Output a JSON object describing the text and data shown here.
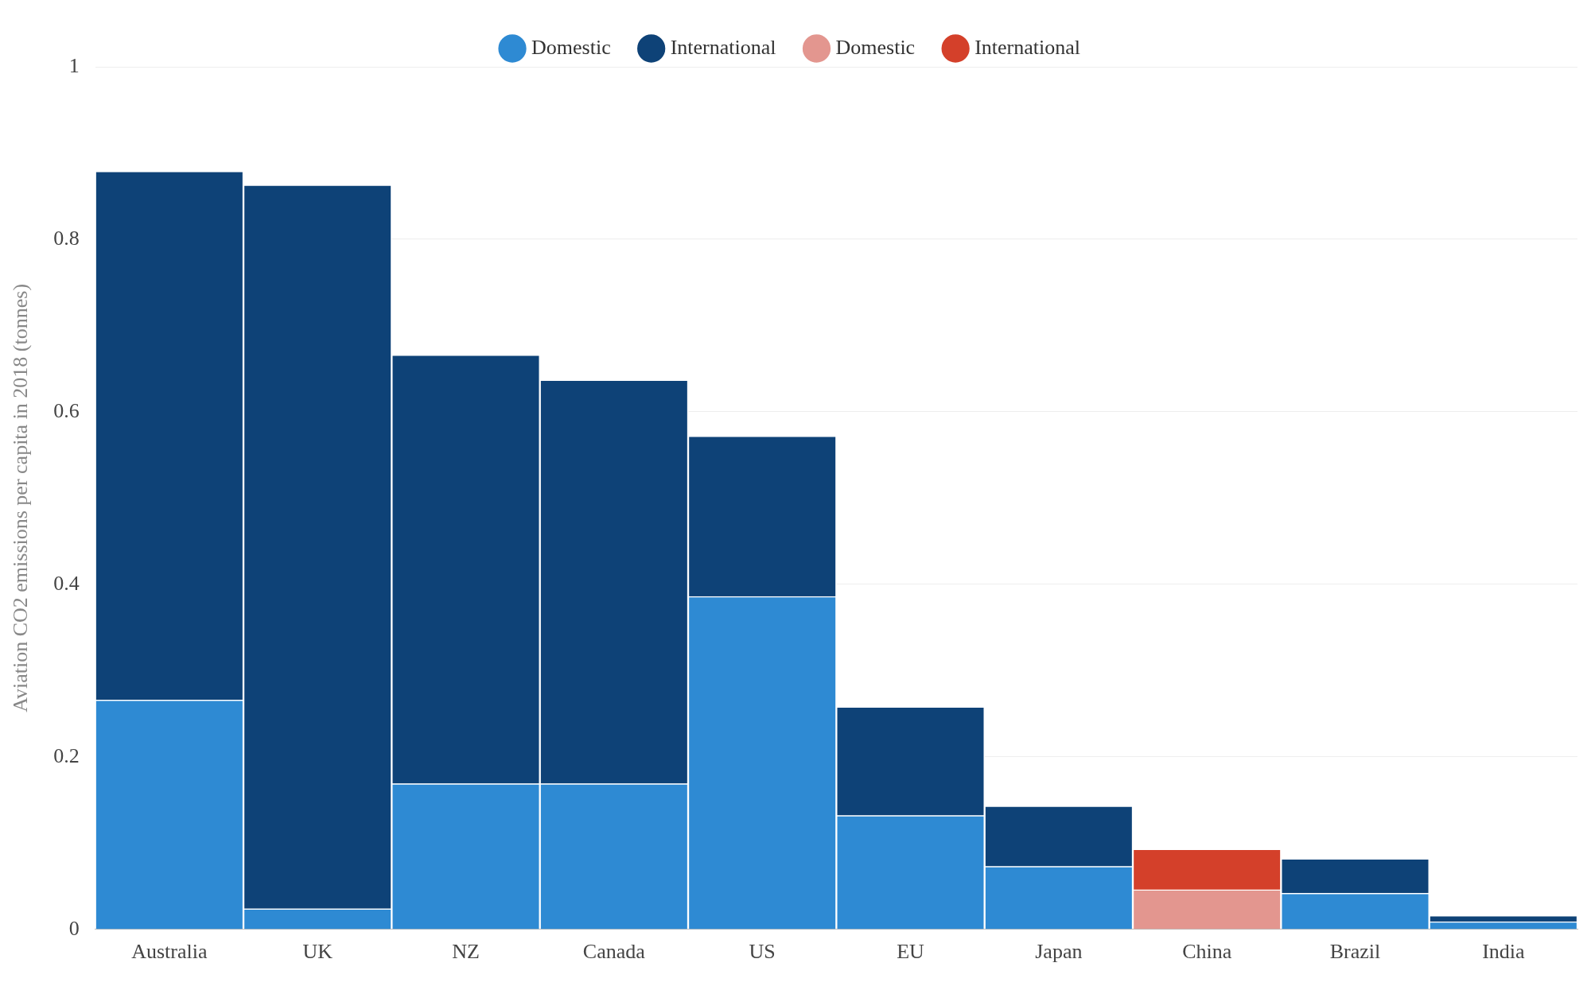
{
  "chart_data": {
    "type": "bar",
    "stacked": true,
    "ylabel": "Aviation CO2 emissions per capita in 2018 (tonnes)",
    "categories": [
      "Australia",
      "UK",
      "NZ",
      "Canada",
      "US",
      "EU",
      "Japan",
      "China",
      "Brazil",
      "India"
    ],
    "series": [
      {
        "name": "Domestic",
        "color": "#2e8ad3",
        "values": [
          0.266,
          0.024,
          0.169,
          0.169,
          0.386,
          0.132,
          0.073,
          null,
          0.042,
          0.009
        ]
      },
      {
        "name": "International",
        "color": "#0e4277",
        "values": [
          0.613,
          0.839,
          0.497,
          0.468,
          0.186,
          0.126,
          0.07,
          null,
          0.04,
          0.007
        ]
      },
      {
        "name": "Domestic",
        "color": "#e3968f",
        "values": [
          null,
          null,
          null,
          null,
          null,
          null,
          null,
          0.046,
          null,
          null
        ]
      },
      {
        "name": "International",
        "color": "#d4402a",
        "values": [
          null,
          null,
          null,
          null,
          null,
          null,
          null,
          0.047,
          null,
          null
        ]
      }
    ],
    "ylim": [
      0,
      1
    ],
    "yticks": [
      0,
      0.2,
      0.4,
      0.6,
      0.8,
      1
    ],
    "grid": "y",
    "legend": "top"
  }
}
